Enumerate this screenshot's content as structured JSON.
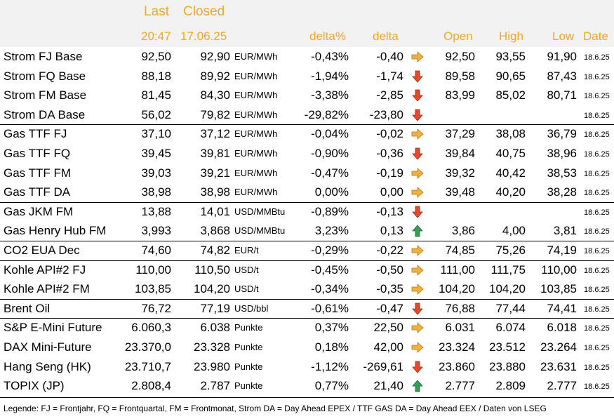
{
  "header": {
    "last_label": "Last",
    "closed_label": "Closed",
    "last_time": "20:47",
    "closed_date": "17.06.25",
    "col_delta_pct": "delta%",
    "col_delta": "delta",
    "col_open": "Open",
    "col_high": "High",
    "col_low": "Low",
    "col_date": "Date"
  },
  "colors": {
    "header_accent": "#f5a623",
    "header_bg": "#f2f2f2",
    "arrow_flat": "#f0b040",
    "arrow_down": "#e04b2f",
    "arrow_up": "#3a9a5a"
  },
  "rows": [
    {
      "name": "Strom FJ Base",
      "last": "92,50",
      "closed": "92,90",
      "unit": "EUR/MWh",
      "delta_pct": "-0,43%",
      "delta": "-0,40",
      "trend": "flat",
      "open": "92,50",
      "high": "93,55",
      "low": "91,90",
      "date": "18.6.25"
    },
    {
      "name": "Strom FQ Base",
      "last": "88,18",
      "closed": "89,92",
      "unit": "EUR/MWh",
      "delta_pct": "-1,94%",
      "delta": "-1,74",
      "trend": "down",
      "open": "89,58",
      "high": "90,65",
      "low": "87,43",
      "date": "18.6.25"
    },
    {
      "name": "Strom FM Base",
      "last": "81,45",
      "closed": "84,30",
      "unit": "EUR/MWh",
      "delta_pct": "-3,38%",
      "delta": "-2,85",
      "trend": "down",
      "open": "83,99",
      "high": "85,02",
      "low": "80,71",
      "date": "18.6.25"
    },
    {
      "name": "Strom DA Base",
      "last": "56,02",
      "closed": "79,82",
      "unit": "EUR/MWh",
      "delta_pct": "-29,82%",
      "delta": "-23,80",
      "trend": "down",
      "open": "",
      "high": "",
      "low": "",
      "date": "18.6.25"
    },
    {
      "name": "Gas TTF FJ",
      "last": "37,10",
      "closed": "37,12",
      "unit": "EUR/MWh",
      "delta_pct": "-0,04%",
      "delta": "-0,02",
      "trend": "flat",
      "open": "37,29",
      "high": "38,08",
      "low": "36,79",
      "date": "18.6.25"
    },
    {
      "name": "Gas TTF FQ",
      "last": "39,45",
      "closed": "39,81",
      "unit": "EUR/MWh",
      "delta_pct": "-0,90%",
      "delta": "-0,36",
      "trend": "down",
      "open": "39,84",
      "high": "40,75",
      "low": "38,96",
      "date": "18.6.25"
    },
    {
      "name": "Gas TTF FM",
      "last": "39,03",
      "closed": "39,21",
      "unit": "EUR/MWh",
      "delta_pct": "-0,47%",
      "delta": "-0,19",
      "trend": "flat",
      "open": "39,32",
      "high": "40,42",
      "low": "38,53",
      "date": "18.6.25"
    },
    {
      "name": "Gas TTF DA",
      "last": "38,98",
      "closed": "38,98",
      "unit": "EUR/MWh",
      "delta_pct": "0,00%",
      "delta": "0,00",
      "trend": "flat",
      "open": "39,48",
      "high": "40,20",
      "low": "38,28",
      "date": "18.6.25"
    },
    {
      "name": "Gas JKM FM",
      "last": "13,88",
      "closed": "14,01",
      "unit": "USD/MMBtu",
      "delta_pct": "-0,89%",
      "delta": "-0,13",
      "trend": "down",
      "open": "",
      "high": "",
      "low": "",
      "date": "18.6.25"
    },
    {
      "name": "Gas Henry Hub FM",
      "last": "3,993",
      "closed": "3,868",
      "unit": "USD/MMBtu",
      "delta_pct": "3,23%",
      "delta": "0,13",
      "trend": "up",
      "open": "3,86",
      "high": "4,00",
      "low": "3,81",
      "date": "18.6.25"
    },
    {
      "name": "CO2 EUA Dec",
      "last": "74,60",
      "closed": "74,82",
      "unit": "EUR/t",
      "delta_pct": "-0,29%",
      "delta": "-0,22",
      "trend": "flat",
      "open": "74,85",
      "high": "75,26",
      "low": "74,19",
      "date": "18.6.25"
    },
    {
      "name": "Kohle API#2 FJ",
      "last": "110,00",
      "closed": "110,50",
      "unit": "USD/t",
      "delta_pct": "-0,45%",
      "delta": "-0,50",
      "trend": "flat",
      "open": "111,00",
      "high": "111,75",
      "low": "110,00",
      "date": "18.6.25"
    },
    {
      "name": "Kohle API#2 FM",
      "last": "103,85",
      "closed": "104,20",
      "unit": "USD/t",
      "delta_pct": "-0,34%",
      "delta": "-0,35",
      "trend": "flat",
      "open": "104,20",
      "high": "104,20",
      "low": "103,85",
      "date": "18.6.25"
    },
    {
      "name": "Brent Oil",
      "last": "76,72",
      "closed": "77,19",
      "unit": "USD/bbl",
      "delta_pct": "-0,61%",
      "delta": "-0,47",
      "trend": "down",
      "open": "76,88",
      "high": "77,44",
      "low": "74,41",
      "date": "18.6.25"
    },
    {
      "name": "S&P E-Mini Future",
      "last": "6.060,3",
      "closed": "6.038",
      "unit": "Punkte",
      "delta_pct": "0,37%",
      "delta": "22,50",
      "trend": "flat",
      "open": "6.031",
      "high": "6.074",
      "low": "6.018",
      "date": "18.6.25"
    },
    {
      "name": "DAX Mini-Future",
      "last": "23.370,0",
      "closed": "23.328",
      "unit": "Punkte",
      "delta_pct": "0,18%",
      "delta": "42,00",
      "trend": "flat",
      "open": "23.324",
      "high": "23.512",
      "low": "23.264",
      "date": "18.6.25"
    },
    {
      "name": "Hang Seng (HK)",
      "last": "23.710,7",
      "closed": "23.980",
      "unit": "Punkte",
      "delta_pct": "-1,12%",
      "delta": "-269,61",
      "trend": "down",
      "open": "23.860",
      "high": "23.880",
      "low": "23.631",
      "date": "18.6.25"
    },
    {
      "name": "TOPIX (JP)",
      "last": "2.808,4",
      "closed": "2.787",
      "unit": "Punkte",
      "delta_pct": "0,77%",
      "delta": "21,40",
      "trend": "up",
      "open": "2.777",
      "high": "2.809",
      "low": "2.777",
      "date": "18.6.25"
    }
  ],
  "legend": "Legende: FJ = Frontjahr, FQ = Frontquartal, FM = Frontmonat, Strom DA = Day Ahead EPEX / TTF GAS DA = Day Ahead EEX / Daten von LSEG"
}
